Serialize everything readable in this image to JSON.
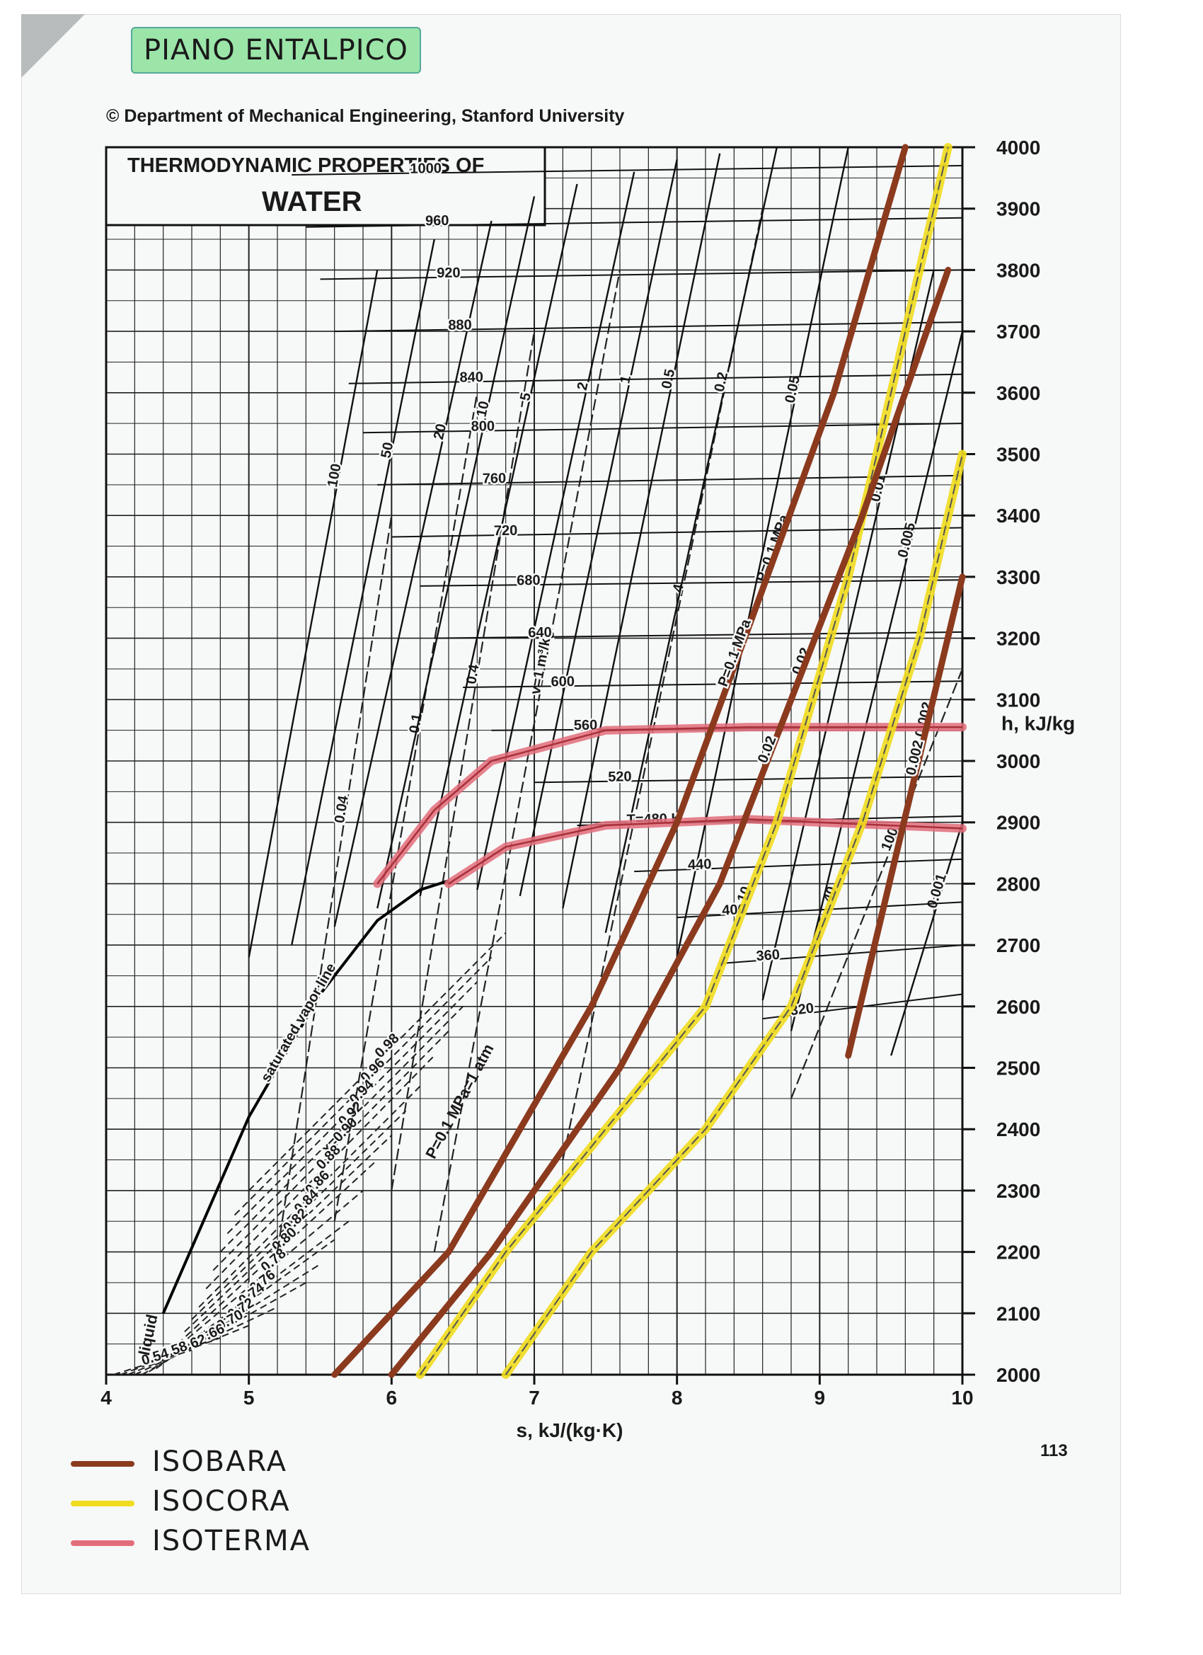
{
  "header": {
    "handwritten_title": "PIANO ENTALPICO",
    "copyright": "© Department of Mechanical Engineering, Stanford University",
    "page_number": "113"
  },
  "legend": {
    "items": [
      {
        "label": "ISOBARA",
        "color": "#8b3a1e"
      },
      {
        "label": "ISOCORA",
        "color": "#f0dc1e"
      },
      {
        "label": "ISOTERMA",
        "color": "#e26d7a"
      }
    ]
  },
  "chart_data": {
    "type": "line",
    "title": "THERMODYNAMIC PROPERTIES OF",
    "subtitle": "WATER",
    "xlabel": "s, kJ/(kg·K)",
    "ylabel": "h, kJ/kg",
    "xlim": [
      4,
      10
    ],
    "ylim": [
      2000,
      4000
    ],
    "xticks": [
      4,
      5,
      6,
      7,
      8,
      9,
      10
    ],
    "yticks": [
      2000,
      2100,
      2200,
      2300,
      2400,
      2500,
      2600,
      2700,
      2800,
      2900,
      3000,
      3100,
      3200,
      3300,
      3400,
      3500,
      3600,
      3700,
      3800,
      3900,
      4000
    ],
    "grid": true,
    "saturated_vapor_line": {
      "name": "saturated vapor line",
      "x": [
        4.4,
        5.0,
        5.5,
        5.9,
        6.2,
        6.4
      ],
      "y": [
        2100,
        2420,
        2620,
        2740,
        2790,
        2805
      ]
    },
    "liquid_label": "liquid",
    "temperature_lines": [
      {
        "label": "320",
        "x": [
          8.6,
          10
        ],
        "y": [
          2580,
          2620
        ]
      },
      {
        "label": "360",
        "x": [
          8.3,
          10
        ],
        "y": [
          2670,
          2700
        ]
      },
      {
        "label": "400",
        "x": [
          8.0,
          10
        ],
        "y": [
          2745,
          2770
        ]
      },
      {
        "label": "440",
        "x": [
          7.7,
          10
        ],
        "y": [
          2820,
          2840
        ]
      },
      {
        "label": "T=480 K",
        "x": [
          7.3,
          10
        ],
        "y": [
          2895,
          2910
        ]
      },
      {
        "label": "520",
        "x": [
          7.0,
          10
        ],
        "y": [
          2965,
          2975
        ]
      },
      {
        "label": "560",
        "x": [
          6.7,
          10
        ],
        "y": [
          3050,
          3055
        ]
      },
      {
        "label": "600",
        "x": [
          6.5,
          10
        ],
        "y": [
          3120,
          3130
        ]
      },
      {
        "label": "640",
        "x": [
          6.3,
          10
        ],
        "y": [
          3200,
          3210
        ]
      },
      {
        "label": "680",
        "x": [
          6.2,
          10
        ],
        "y": [
          3285,
          3295
        ]
      },
      {
        "label": "720",
        "x": [
          6.0,
          10
        ],
        "y": [
          3365,
          3380
        ]
      },
      {
        "label": "760",
        "x": [
          5.9,
          10
        ],
        "y": [
          3450,
          3465
        ]
      },
      {
        "label": "800",
        "x": [
          5.8,
          10
        ],
        "y": [
          3535,
          3550
        ]
      },
      {
        "label": "840",
        "x": [
          5.7,
          10
        ],
        "y": [
          3615,
          3630
        ]
      },
      {
        "label": "880",
        "x": [
          5.6,
          10
        ],
        "y": [
          3700,
          3715
        ]
      },
      {
        "label": "920",
        "x": [
          5.5,
          10
        ],
        "y": [
          3785,
          3800
        ]
      },
      {
        "label": "960",
        "x": [
          5.4,
          10
        ],
        "y": [
          3870,
          3885
        ]
      },
      {
        "label": "1000",
        "x": [
          5.3,
          10
        ],
        "y": [
          3955,
          3970
        ]
      }
    ],
    "pressure_lines": [
      {
        "label": "100",
        "x": [
          5.0,
          5.9
        ],
        "y": [
          2680,
          3800
        ]
      },
      {
        "label": "50",
        "x": [
          5.3,
          6.3
        ],
        "y": [
          2700,
          3850
        ]
      },
      {
        "label": "20",
        "x": [
          5.6,
          6.7
        ],
        "y": [
          2730,
          3880
        ]
      },
      {
        "label": "10",
        "x": [
          5.9,
          7.0
        ],
        "y": [
          2760,
          3920
        ]
      },
      {
        "label": "5",
        "x": [
          6.2,
          7.3
        ],
        "y": [
          2780,
          3940
        ]
      },
      {
        "label": "2",
        "x": [
          6.6,
          7.7
        ],
        "y": [
          2790,
          3960
        ]
      },
      {
        "label": "1",
        "x": [
          6.9,
          8.0
        ],
        "y": [
          2780,
          3980
        ]
      },
      {
        "label": "0.5",
        "x": [
          7.2,
          8.3
        ],
        "y": [
          2760,
          3990
        ]
      },
      {
        "label": "0.2",
        "x": [
          7.5,
          8.7
        ],
        "y": [
          2720,
          4000
        ]
      },
      {
        "label": "P=0.1 MPa",
        "x": [
          5.6,
          6.4,
          7.4,
          8.0,
          8.6,
          9.1,
          9.6
        ],
        "y": [
          2000,
          2200,
          2600,
          2900,
          3280,
          3600,
          4000
        ]
      },
      {
        "label": "0.05",
        "x": [
          8.0,
          9.2
        ],
        "y": [
          2680,
          4000
        ]
      },
      {
        "label": "0.02",
        "x": [
          6.0,
          6.7,
          7.6,
          8.3,
          8.8,
          9.3,
          9.9
        ],
        "y": [
          2000,
          2200,
          2500,
          2800,
          3100,
          3400,
          3800
        ]
      },
      {
        "label": "0.01",
        "x": [
          8.6,
          9.8
        ],
        "y": [
          2610,
          3800
        ]
      },
      {
        "label": "0.005",
        "x": [
          8.8,
          10.0
        ],
        "y": [
          2560,
          3700
        ]
      },
      {
        "label": "0.002",
        "x": [
          9.2,
          10.0
        ],
        "y": [
          2520,
          3300
        ]
      },
      {
        "label": "0.001",
        "x": [
          9.5,
          10.0
        ],
        "y": [
          2520,
          2900
        ]
      }
    ],
    "specific_volume_lines": [
      {
        "label": "0.04",
        "x": [
          5.2,
          6.0
        ],
        "y": [
          2200,
          3400
        ]
      },
      {
        "label": "0.1",
        "x": [
          5.6,
          6.6
        ],
        "y": [
          2250,
          3600
        ]
      },
      {
        "label": "0.4",
        "x": [
          6.0,
          7.0
        ],
        "y": [
          2300,
          3700
        ]
      },
      {
        "label": "v=1 m³/kg",
        "x": [
          6.3,
          7.6
        ],
        "y": [
          2200,
          3800
        ]
      },
      {
        "label": "4",
        "x": [
          7.2,
          8.6
        ],
        "y": [
          2350,
          3900
        ]
      },
      {
        "label": "10",
        "x": [
          6.2,
          6.8,
          7.5,
          8.2,
          8.7,
          9.2,
          9.9
        ],
        "y": [
          2000,
          2200,
          2400,
          2600,
          2900,
          3300,
          4000
        ]
      },
      {
        "label": "40",
        "x": [
          6.8,
          7.4,
          8.2,
          8.8,
          9.3,
          9.7,
          10.0
        ],
        "y": [
          2000,
          2200,
          2400,
          2600,
          2900,
          3200,
          3500
        ]
      },
      {
        "label": "100",
        "x": [
          8.8,
          10.0
        ],
        "y": [
          2450,
          3150
        ]
      }
    ],
    "quality_lines": [
      {
        "label": "0.98",
        "x": [
          5.0,
          6.8
        ],
        "y": [
          2300,
          2720
        ]
      },
      {
        "label": "0.96",
        "x": [
          4.9,
          6.7
        ],
        "y": [
          2260,
          2680
        ]
      },
      {
        "label": "0.94",
        "x": [
          4.85,
          6.6
        ],
        "y": [
          2230,
          2640
        ]
      },
      {
        "label": "0.92",
        "x": [
          4.8,
          6.5
        ],
        "y": [
          2200,
          2600
        ]
      },
      {
        "label": "x=0.90",
        "x": [
          4.75,
          6.4
        ],
        "y": [
          2170,
          2560
        ]
      },
      {
        "label": "0.88",
        "x": [
          4.7,
          6.3
        ],
        "y": [
          2140,
          2520
        ]
      },
      {
        "label": "0.86",
        "x": [
          4.65,
          6.2
        ],
        "y": [
          2110,
          2470
        ]
      },
      {
        "label": "0.84",
        "x": [
          4.6,
          6.1
        ],
        "y": [
          2090,
          2430
        ]
      },
      {
        "label": "0.82",
        "x": [
          4.55,
          6.0
        ],
        "y": [
          2070,
          2390
        ]
      },
      {
        "label": "0.80",
        "x": [
          4.5,
          5.9
        ],
        "y": [
          2050,
          2350
        ]
      },
      {
        "label": "0.78",
        "x": [
          4.45,
          5.8
        ],
        "y": [
          2035,
          2300
        ]
      },
      {
        "label": "0.76",
        "x": [
          4.4,
          5.7
        ],
        "y": [
          2020,
          2250
        ]
      },
      {
        "label": "0.74",
        "x": [
          4.35,
          5.6
        ],
        "y": [
          2010,
          2220
        ]
      },
      {
        "label": "0.72",
        "x": [
          4.3,
          5.5
        ],
        "y": [
          2005,
          2180
        ]
      },
      {
        "label": "0.70",
        "x": [
          4.25,
          5.4
        ],
        "y": [
          2000,
          2150
        ]
      },
      {
        "label": "0.66",
        "x": [
          4.2,
          5.2
        ],
        "y": [
          2000,
          2110
        ]
      },
      {
        "label": "0.62",
        "x": [
          4.15,
          5.0
        ],
        "y": [
          2000,
          2080
        ]
      },
      {
        "label": "0.58",
        "x": [
          4.1,
          4.8
        ],
        "y": [
          2000,
          2060
        ]
      },
      {
        "label": "0.54",
        "x": [
          4.05,
          4.6
        ],
        "y": [
          2000,
          2040
        ]
      }
    ],
    "annotations": {
      "atm_line": "P=0.1 MPa=1 atm"
    },
    "highlighted_isobars": [
      {
        "label": "P=0.1 MPa",
        "x": [
          5.6,
          6.4,
          7.4,
          8.0,
          8.6,
          9.1,
          9.6
        ],
        "y": [
          2000,
          2200,
          2600,
          2900,
          3280,
          3600,
          4000
        ]
      },
      {
        "label": "0.02",
        "x": [
          6.0,
          6.7,
          7.6,
          8.3,
          8.8,
          9.3,
          9.9
        ],
        "y": [
          2000,
          2200,
          2500,
          2800,
          3100,
          3400,
          3800
        ]
      },
      {
        "label": "0.002",
        "x": [
          9.2,
          10.0
        ],
        "y": [
          2520,
          3300
        ]
      }
    ],
    "highlighted_isochores": [
      {
        "label": "10",
        "x": [
          6.2,
          6.8,
          7.5,
          8.2,
          8.7,
          9.2,
          9.9
        ],
        "y": [
          2000,
          2200,
          2400,
          2600,
          2900,
          3300,
          4000
        ]
      },
      {
        "label": "40",
        "x": [
          6.8,
          7.4,
          8.2,
          8.8,
          9.3,
          9.7,
          10.0
        ],
        "y": [
          2000,
          2200,
          2400,
          2600,
          2900,
          3200,
          3500
        ]
      }
    ],
    "highlighted_isotherms": [
      {
        "label": "560",
        "x": [
          5.9,
          6.3,
          6.7,
          7.5,
          8.5,
          10.0
        ],
        "y": [
          2800,
          2920,
          3000,
          3050,
          3055,
          3055
        ]
      },
      {
        "label": "T=480 K",
        "x": [
          6.4,
          6.8,
          7.5,
          8.5,
          10.0
        ],
        "y": [
          2800,
          2860,
          2895,
          2905,
          2890
        ]
      }
    ]
  }
}
